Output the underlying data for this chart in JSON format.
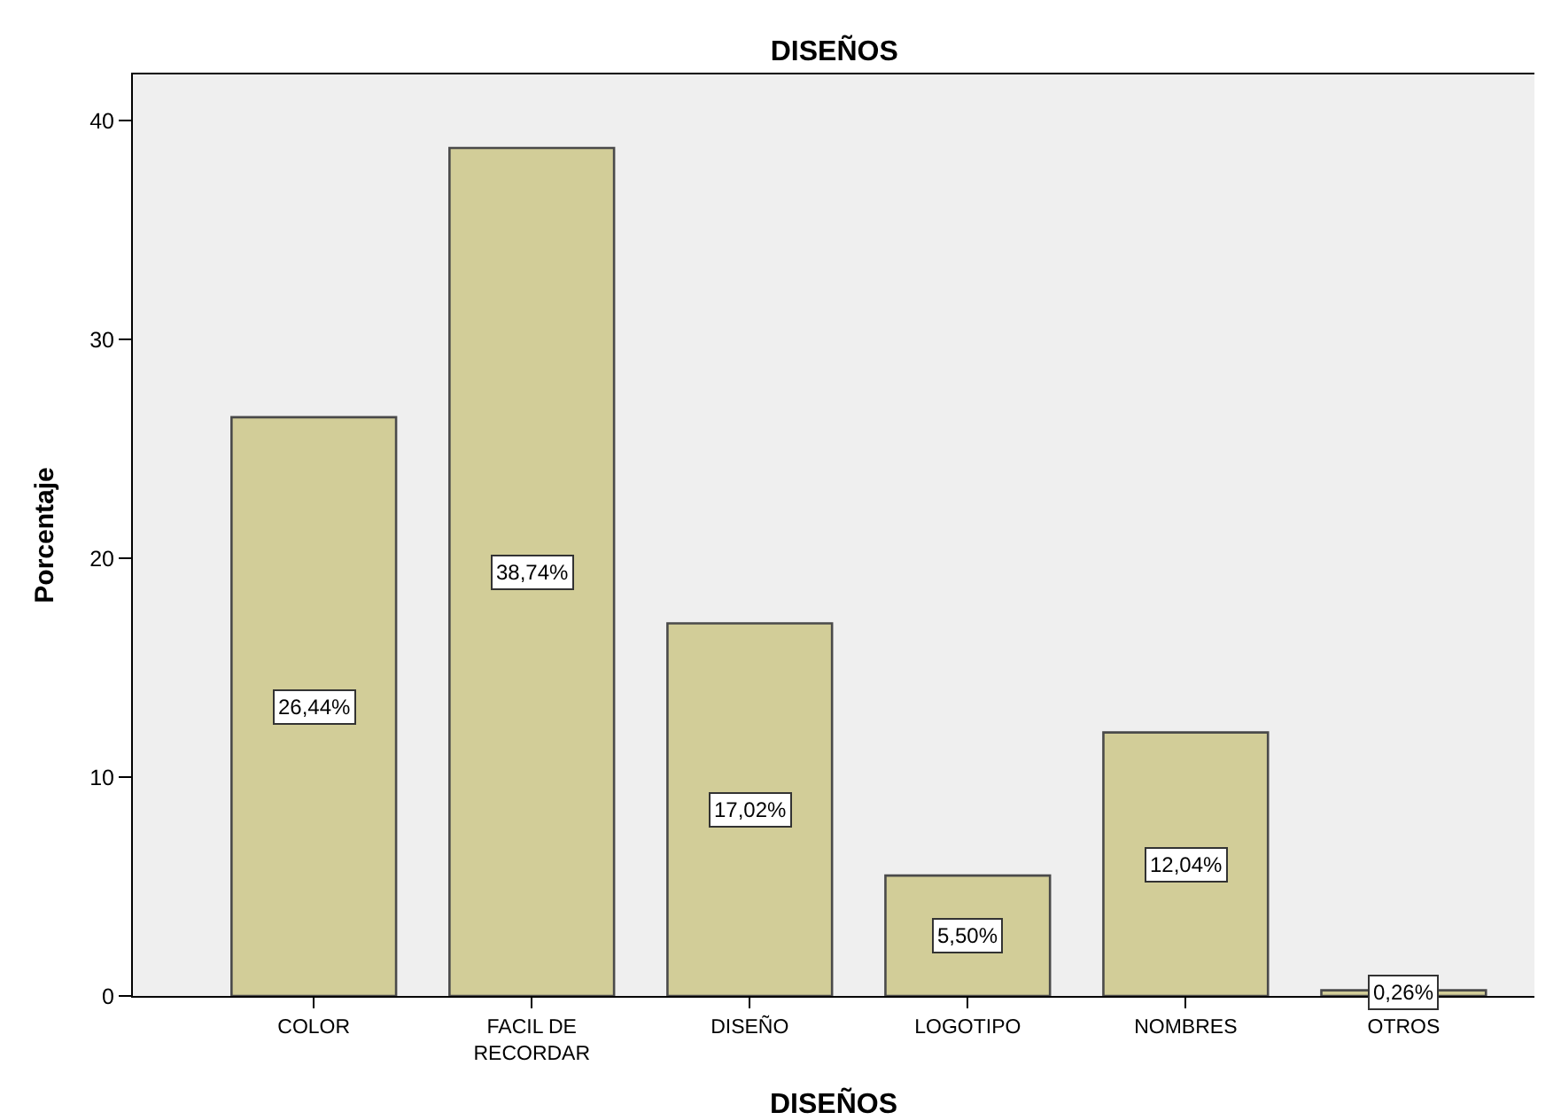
{
  "chart_data": {
    "type": "bar",
    "title": "DISEÑOS",
    "xlabel": "DISEÑOS",
    "ylabel": "Porcentaje",
    "categories": [
      "COLOR",
      "FACIL DE\nRECORDAR",
      "DISEÑO",
      "LOGOTIPO",
      "NOMBRES",
      "OTROS"
    ],
    "values": [
      26.44,
      38.74,
      17.02,
      5.5,
      12.04,
      0.26
    ],
    "value_labels": [
      "26,44%",
      "38,74%",
      "17,02%",
      "5,50%",
      "12,04%",
      "0,26%"
    ],
    "color": "#d2cd98",
    "ylim": [
      0,
      42.1
    ],
    "yticks": [
      0,
      10,
      20,
      30,
      40
    ],
    "grid": false
  }
}
